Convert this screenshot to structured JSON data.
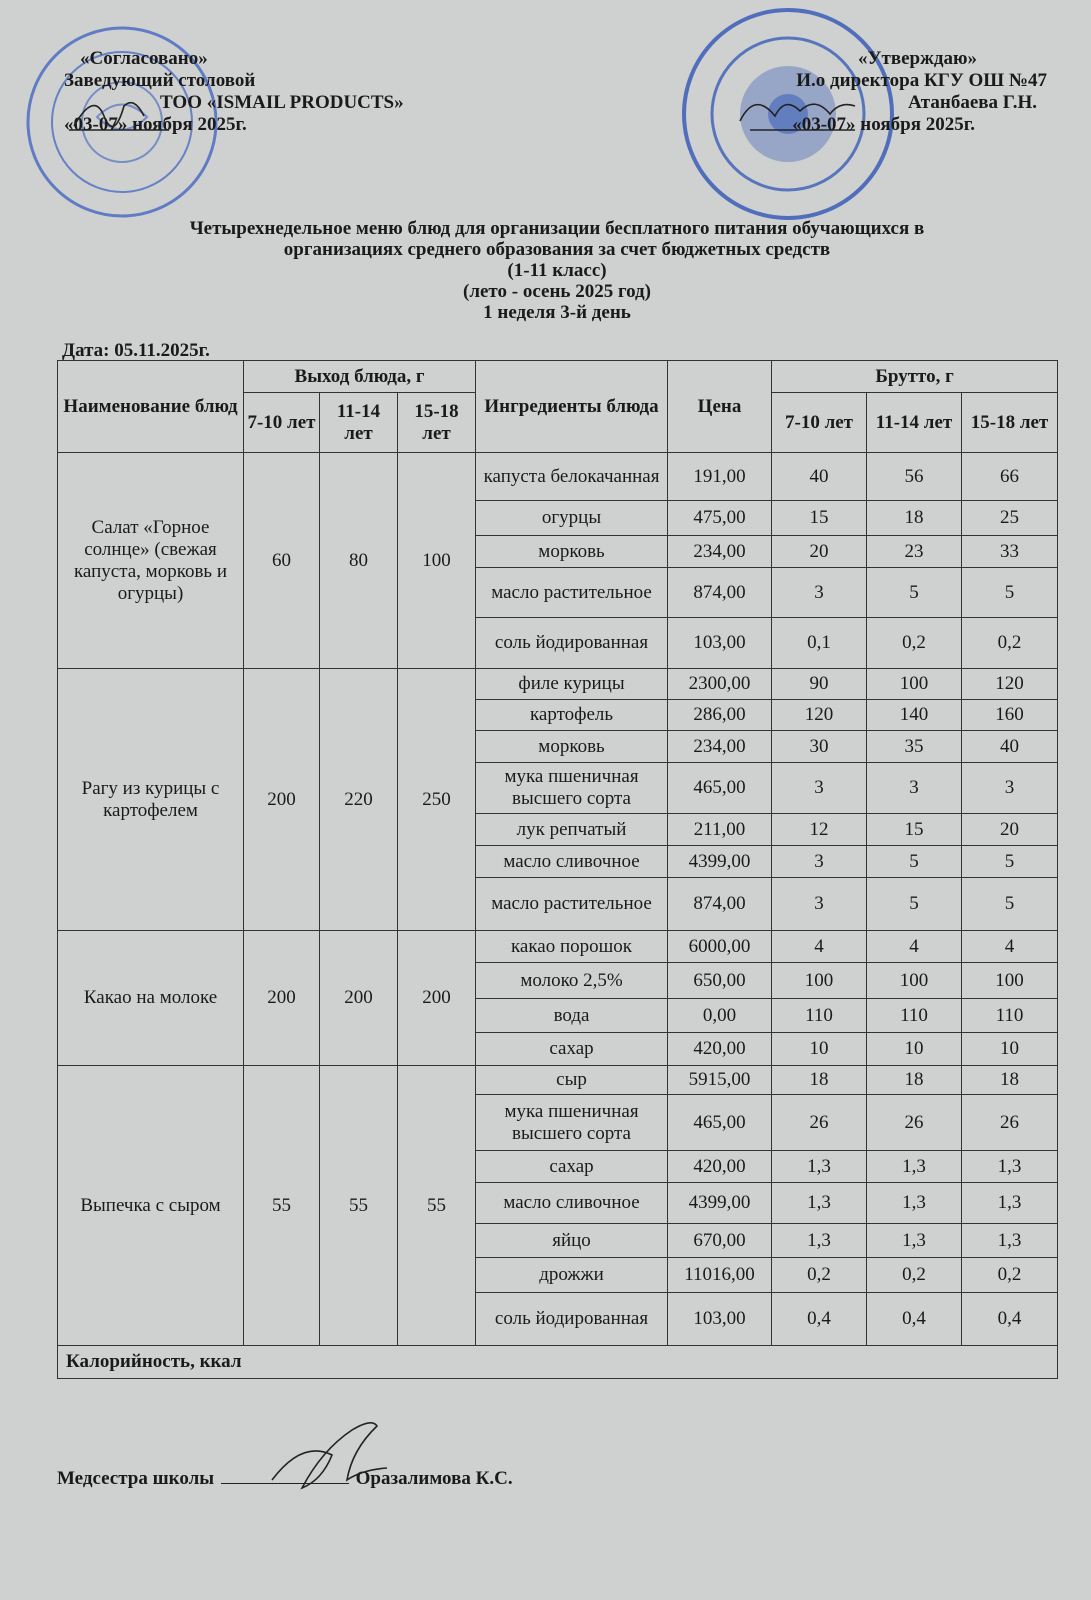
{
  "approval_left": {
    "line1": "«Согласовано»",
    "line2": "Заведующий столовой",
    "line3": "ТОО «ISMAIL PRODUCTS»",
    "line4": "«03-07» ноября 2025г."
  },
  "approval_right": {
    "line1": "«Утверждаю»",
    "line2": "И.о директора КГУ ОШ №47",
    "line3": "Атанбаева Г.Н.",
    "line4": "«03-07» ноября 2025г."
  },
  "title": {
    "line1": "Четырехнедельное меню блюд для организации бесплатного питания обучающихся в",
    "line2": "организациях среднего образования за счет бюджетных средств",
    "line3": "(1-11 класс)",
    "line4": "(лето - осень 2025 год)",
    "line5": "1 неделя 3-й день"
  },
  "date": "Дата: 05.11.2025г.",
  "table": {
    "headers": {
      "dish": "Наименование блюд",
      "output": "Выход блюда, г",
      "ingredients": "Ингредиенты блюда",
      "price": "Цена",
      "brutto": "Брутто, г",
      "ages": [
        "7-10 лет",
        "11-14 лет",
        "15-18 лет"
      ]
    },
    "dishes": [
      {
        "name": "Салат «Горное солнце» (свежая капуста, морковь и огурцы)",
        "output": [
          "60",
          "80",
          "100"
        ],
        "ingredients": [
          {
            "name": "капуста белокачанная",
            "price": "191,00",
            "brutto": [
              "40",
              "56",
              "66"
            ]
          },
          {
            "name": "огурцы",
            "price": "475,00",
            "brutto": [
              "15",
              "18",
              "25"
            ]
          },
          {
            "name": "морковь",
            "price": "234,00",
            "brutto": [
              "20",
              "23",
              "33"
            ]
          },
          {
            "name": "масло растительное",
            "price": "874,00",
            "brutto": [
              "3",
              "5",
              "5"
            ]
          },
          {
            "name": "соль йодированная",
            "price": "103,00",
            "brutto": [
              "0,1",
              "0,2",
              "0,2"
            ]
          }
        ]
      },
      {
        "name": "Рагу из курицы с картофелем",
        "output": [
          "200",
          "220",
          "250"
        ],
        "ingredients": [
          {
            "name": "филе курицы",
            "price": "2300,00",
            "brutto": [
              "90",
              "100",
              "120"
            ]
          },
          {
            "name": "картофель",
            "price": "286,00",
            "brutto": [
              "120",
              "140",
              "160"
            ]
          },
          {
            "name": "морковь",
            "price": "234,00",
            "brutto": [
              "30",
              "35",
              "40"
            ]
          },
          {
            "name": "мука пшеничная высшего сорта",
            "price": "465,00",
            "brutto": [
              "3",
              "3",
              "3"
            ]
          },
          {
            "name": "лук репчатый",
            "price": "211,00",
            "brutto": [
              "12",
              "15",
              "20"
            ]
          },
          {
            "name": "масло сливочное",
            "price": "4399,00",
            "brutto": [
              "3",
              "5",
              "5"
            ]
          },
          {
            "name": "масло растительное",
            "price": "874,00",
            "brutto": [
              "3",
              "5",
              "5"
            ]
          }
        ]
      },
      {
        "name": "Какао на молоке",
        "output": [
          "200",
          "200",
          "200"
        ],
        "ingredients": [
          {
            "name": "какао порошок",
            "price": "6000,00",
            "brutto": [
              "4",
              "4",
              "4"
            ]
          },
          {
            "name": "молоко 2,5%",
            "price": "650,00",
            "brutto": [
              "100",
              "100",
              "100"
            ]
          },
          {
            "name": "вода",
            "price": "0,00",
            "brutto": [
              "110",
              "110",
              "110"
            ]
          },
          {
            "name": "сахар",
            "price": "420,00",
            "brutto": [
              "10",
              "10",
              "10"
            ]
          }
        ]
      },
      {
        "name": "Выпечка с сыром",
        "output": [
          "55",
          "55",
          "55"
        ],
        "ingredients": [
          {
            "name": "сыр",
            "price": "5915,00",
            "brutto": [
              "18",
              "18",
              "18"
            ]
          },
          {
            "name": "мука пшеничная высшего сорта",
            "price": "465,00",
            "brutto": [
              "26",
              "26",
              "26"
            ]
          },
          {
            "name": "сахар",
            "price": "420,00",
            "brutto": [
              "1,3",
              "1,3",
              "1,3"
            ]
          },
          {
            "name": "масло сливочное",
            "price": "4399,00",
            "brutto": [
              "1,3",
              "1,3",
              "1,3"
            ]
          },
          {
            "name": "яйцо",
            "price": "670,00",
            "brutto": [
              "1,3",
              "1,3",
              "1,3"
            ]
          },
          {
            "name": "дрожжи",
            "price": "11016,00",
            "brutto": [
              "0,2",
              "0,2",
              "0,2"
            ]
          },
          {
            "name": "соль йодированная",
            "price": "103,00",
            "brutto": [
              "0,4",
              "0,4",
              "0,4"
            ]
          }
        ]
      }
    ],
    "calories_label": "Калорийность, ккал"
  },
  "footer": {
    "label": "Медсестра школы",
    "name": "Оразалимова К.С."
  },
  "colors": {
    "stamp": "#2f55b5",
    "ink": "#1a1a1a",
    "paper": "#cfd1d0"
  }
}
